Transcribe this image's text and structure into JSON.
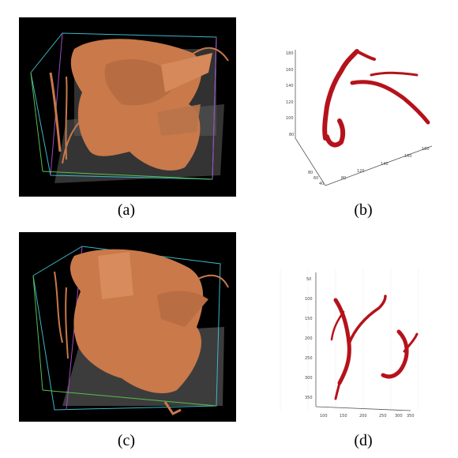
{
  "figure": {
    "captions": [
      "(a)",
      "(b)",
      "(c)",
      "(d)"
    ],
    "colors": {
      "render_background": "#000000",
      "vessel_copper": "#c9794a",
      "vessel_red": "#b5121b",
      "bbox_cyan": "#3bb7c9",
      "bbox_magenta": "#a24ac0",
      "bbox_green": "#57c04b"
    },
    "panels": {
      "a": {
        "description": "3D render of hepatic vessel tree (copper) in bounding box over CT slice"
      },
      "b": {
        "x_ticks": [
          "40",
          "60",
          "80",
          "100",
          "120",
          "140",
          "160"
        ],
        "y_ticks": [
          "60",
          "80",
          "100",
          "120",
          "140",
          "160"
        ],
        "z_ticks": [
          "80",
          "100",
          "120",
          "140",
          "160",
          "180"
        ]
      },
      "c": {
        "description": "3D render of hepatic vessel tree (copper) over CT slice"
      },
      "d": {
        "x_ticks": [
          "100",
          "150",
          "200",
          "250",
          "300",
          "350"
        ],
        "y_ticks": [
          "50",
          "100",
          "150",
          "200",
          "250",
          "300",
          "350"
        ]
      }
    }
  }
}
